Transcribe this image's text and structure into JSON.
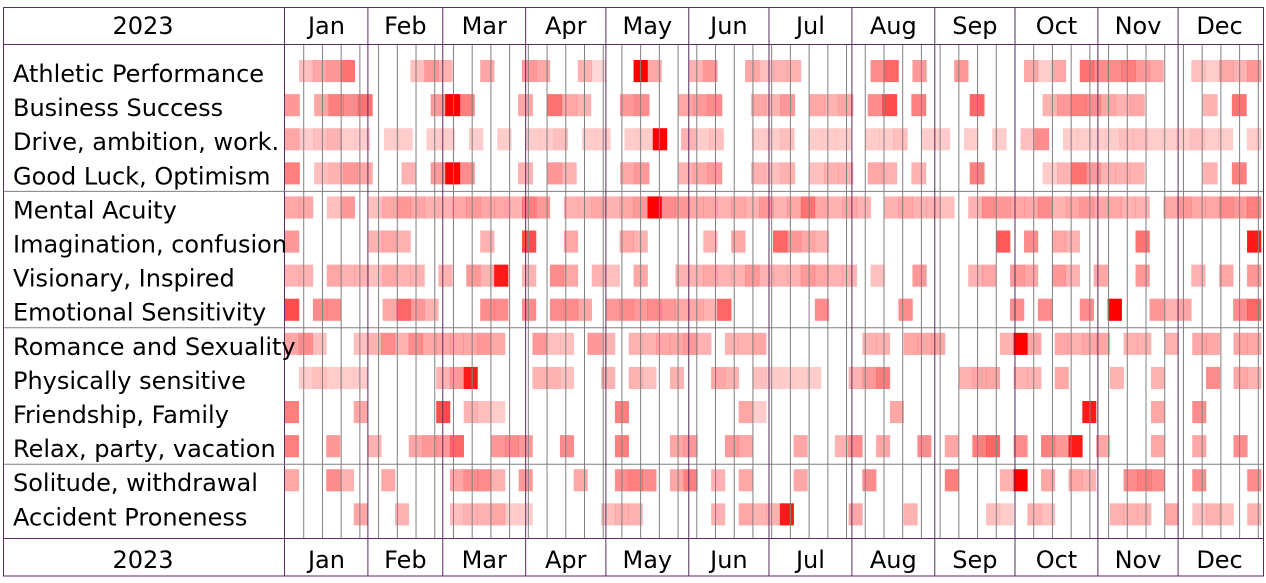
{
  "chart_data": {
    "type": "heatmap",
    "year": "2023",
    "months": [
      "Jan",
      "Feb",
      "Mar",
      "Apr",
      "May",
      "Jun",
      "Jul",
      "Aug",
      "Sep",
      "Oct",
      "Nov",
      "Dec"
    ],
    "resolution": "week",
    "cell_color": "#ff0000",
    "groups": [
      {
        "rows": [
          {
            "label": "Athletic Performance",
            "values": [
              0,
              0.25,
              0.35,
              0.4,
              0.55,
              0,
              0,
              0,
              0,
              0.25,
              0.4,
              0.3,
              0,
              0,
              0.35,
              0,
              0,
              0.4,
              0.35,
              0,
              0,
              0.3,
              0.15,
              0,
              0,
              1,
              0.35,
              0,
              0,
              0.3,
              0.4,
              0,
              0,
              0.35,
              0.25,
              0.3,
              0.3,
              0,
              0,
              0,
              0,
              0,
              0.45,
              0.6,
              0,
              0.4,
              0,
              0,
              0.4,
              0,
              0,
              0,
              0,
              0.35,
              0.2,
              0.35,
              0,
              0.55,
              0.45,
              0.45,
              0.5,
              0.4,
              0.35,
              0,
              0,
              0.25,
              0.2,
              0.35,
              0.3,
              0.4
            ]
          },
          {
            "label": "Business Success",
            "values": [
              0.4,
              0,
              0.35,
              0.5,
              0.45,
              0.55,
              0,
              0,
              0,
              0,
              0.4,
              1,
              0.5,
              0,
              0,
              0,
              0.35,
              0,
              0.55,
              0.35,
              0.3,
              0,
              0,
              0.4,
              0.45,
              0,
              0,
              0.35,
              0.4,
              0.45,
              0,
              0,
              0.35,
              0.3,
              0.4,
              0,
              0.35,
              0.3,
              0.35,
              0,
              0.45,
              0.7,
              0,
              0.5,
              0,
              0,
              0,
              0.6,
              0,
              0,
              0,
              0,
              0.3,
              0.4,
              0.5,
              0.45,
              0.35,
              0.3,
              0.35,
              0,
              0,
              0,
              0,
              0.3,
              0,
              0.55,
              0
            ]
          },
          {
            "label": "Drive, ambition, work.",
            "values": [
              0.35,
              0.2,
              0.25,
              0.3,
              0.2,
              0.2,
              0,
              0.2,
              0.2,
              0,
              0.2,
              0.2,
              0,
              0.2,
              0,
              0.2,
              0,
              0.2,
              0.2,
              0.25,
              0,
              0.2,
              0.2,
              0,
              0.2,
              0.2,
              1,
              0,
              0.3,
              0.2,
              0.25,
              0,
              0,
              0.2,
              0.2,
              0.25,
              0,
              0.2,
              0.2,
              0.2,
              0,
              0.2,
              0.2,
              0.25,
              0,
              0.2,
              0.2,
              0,
              0.2,
              0,
              0.2,
              0,
              0.25,
              0.45,
              0,
              0.2,
              0.2,
              0.2,
              0.2,
              0.25,
              0.25,
              0.2,
              0.2,
              0.2,
              0.25,
              0.2,
              0.2,
              0,
              0.2
            ]
          },
          {
            "label": "Good Luck, Optimism",
            "values": [
              0.5,
              0,
              0.25,
              0.3,
              0.4,
              0.35,
              0,
              0,
              0.3,
              0,
              0.4,
              1,
              0.45,
              0,
              0,
              0,
              0.3,
              0,
              0.4,
              0.3,
              0,
              0,
              0,
              0.35,
              0.4,
              0,
              0,
              0.3,
              0.35,
              0.4,
              0,
              0,
              0.3,
              0.25,
              0.3,
              0,
              0.25,
              0.3,
              0.3,
              0,
              0.35,
              0.3,
              0,
              0.3,
              0,
              0,
              0,
              0.5,
              0,
              0,
              0,
              0,
              0.2,
              0.3,
              0.55,
              0.4,
              0.3,
              0.3,
              0.3,
              0,
              0,
              0,
              0,
              0.3,
              0,
              0.5,
              0
            ]
          }
        ]
      },
      {
        "rows": [
          {
            "label": "Mental Acuity",
            "values": [
              0.35,
              0.35,
              0,
              0.25,
              0.4,
              0,
              0.25,
              0.35,
              0.4,
              0.35,
              0.3,
              0.3,
              0.35,
              0.4,
              0.35,
              0.35,
              0.3,
              0.5,
              0.4,
              0,
              0.3,
              0.3,
              0.35,
              0.3,
              0.35,
              0.4,
              1,
              0.45,
              0.4,
              0.35,
              0.35,
              0.3,
              0.35,
              0.3,
              0.4,
              0.3,
              0.35,
              0.55,
              0.35,
              0.3,
              0.35,
              0.3,
              0,
              0.3,
              0.35,
              0.3,
              0.3,
              0.25,
              0,
              0.3,
              0.45,
              0.4,
              0.35,
              0.35,
              0.45,
              0.3,
              0.35,
              0.4,
              0.35,
              0.35,
              0.3,
              0.3,
              0,
              0.35,
              0.4,
              0.35,
              0.35,
              0.45,
              0.4,
              0.5
            ]
          },
          {
            "label": "Imagination, confusion",
            "values": [
              0.4,
              0,
              0,
              0,
              0,
              0,
              0.3,
              0.35,
              0.3,
              0,
              0,
              0,
              0,
              0,
              0.3,
              0,
              0,
              0.7,
              0,
              0,
              0.35,
              0,
              0,
              0,
              0.35,
              0.3,
              0,
              0,
              0,
              0,
              0.3,
              0,
              0.35,
              0,
              0,
              0.6,
              0.4,
              0.35,
              0.3,
              0,
              0,
              0,
              0,
              0,
              0,
              0,
              0,
              0,
              0,
              0,
              0,
              0.65,
              0,
              0.45,
              0,
              0.35,
              0.3,
              0,
              0,
              0,
              0,
              0.55,
              0,
              0,
              0,
              0,
              0,
              0,
              0,
              0.9
            ]
          },
          {
            "label": "Visionary, Inspired",
            "values": [
              0.3,
              0.3,
              0,
              0.35,
              0.3,
              0.3,
              0.25,
              0.35,
              0.3,
              0.3,
              0,
              0.3,
              0,
              0.4,
              0.3,
              0.9,
              0,
              0.3,
              0,
              0.45,
              0.35,
              0,
              0.3,
              0.25,
              0,
              0.35,
              0,
              0,
              0.3,
              0.3,
              0.35,
              0.3,
              0.3,
              0.4,
              0.3,
              0.3,
              0.3,
              0.4,
              0.35,
              0.3,
              0.3,
              0,
              0.25,
              0,
              0,
              0.4,
              0,
              0,
              0,
              0.3,
              0.35,
              0,
              0.4,
              0.35,
              0,
              0.4,
              0.3,
              0,
              0.35,
              0,
              0,
              0.4,
              0,
              0,
              0,
              0.3,
              0,
              0.35,
              0,
              0.4
            ]
          },
          {
            "label": "Emotional Sensitivity",
            "values": [
              0.7,
              0,
              0.45,
              0.45,
              0,
              0,
              0,
              0.35,
              0.6,
              0.4,
              0.3,
              0,
              0,
              0,
              0.45,
              0.45,
              0,
              0.45,
              0,
              0.45,
              0.45,
              0.35,
              0,
              0.4,
              0.45,
              0.4,
              0.45,
              0.4,
              0.35,
              0.35,
              0.3,
              0.6,
              0,
              0,
              0,
              0,
              0,
              0,
              0.45,
              0,
              0,
              0,
              0,
              0,
              0.45,
              0,
              0,
              0,
              0,
              0,
              0,
              0,
              0.45,
              0,
              0.45,
              0,
              0,
              0.45,
              0,
              1,
              0,
              0,
              0.4,
              0.3,
              0.35,
              0,
              0,
              0,
              0.45,
              0.6
            ]
          }
        ]
      },
      {
        "rows": [
          {
            "label": "Romance and Sexuality",
            "values": [
              0.35,
              0.45,
              0.25,
              0,
              0,
              0.25,
              0.3,
              0.45,
              0.3,
              0.45,
              0.35,
              0.35,
              0.35,
              0.35,
              0.4,
              0.35,
              0,
              0,
              0.4,
              0.25,
              0.25,
              0,
              0.4,
              0.3,
              0,
              0.3,
              0.3,
              0.35,
              0.35,
              0.4,
              0.3,
              0,
              0.3,
              0.3,
              0.35,
              0,
              0,
              0,
              0,
              0,
              0,
              0,
              0.3,
              0.3,
              0,
              0.35,
              0.35,
              0.35,
              0,
              0,
              0,
              0,
              0.3,
              1,
              0.35,
              0,
              0.35,
              0.3,
              0.35,
              0.35,
              0,
              0.3,
              0.3,
              0,
              0.3,
              0,
              0.35,
              0.35,
              0,
              0.35,
              0.35
            ]
          },
          {
            "label": "Physically sensitive",
            "values": [
              0,
              0.2,
              0.25,
              0.2,
              0.2,
              0.2,
              0,
              0,
              0,
              0,
              0,
              0.3,
              0.4,
              0.9,
              0,
              0,
              0,
              0,
              0.3,
              0.3,
              0.25,
              0,
              0,
              0.3,
              0,
              0.3,
              0.25,
              0,
              0.3,
              0,
              0,
              0.35,
              0.3,
              0,
              0.25,
              0.2,
              0.2,
              0.2,
              0.2,
              0,
              0,
              0.3,
              0.4,
              0.5,
              0,
              0,
              0,
              0,
              0,
              0.3,
              0.35,
              0.35,
              0,
              0.3,
              0.3,
              0,
              0.35,
              0,
              0,
              0,
              0.3,
              0,
              0,
              0.3,
              0,
              0,
              0,
              0.45,
              0,
              0.35,
              0.3
            ]
          },
          {
            "label": "Friendship, Family",
            "values": [
              0.5,
              0,
              0,
              0,
              0,
              0.35,
              0,
              0,
              0,
              0,
              0,
              0.7,
              0,
              0.3,
              0.25,
              0.2,
              0,
              0,
              0,
              0,
              0,
              0,
              0,
              0,
              0.5,
              0,
              0,
              0,
              0,
              0,
              0,
              0,
              0,
              0.35,
              0.2,
              0,
              0,
              0,
              0,
              0,
              0,
              0,
              0,
              0,
              0.35,
              0,
              0,
              0,
              0,
              0,
              0,
              0,
              0,
              0,
              0,
              0,
              0,
              0,
              0.9,
              0,
              0,
              0,
              0,
              0.35,
              0,
              0,
              0.45,
              0,
              0,
              0,
              0
            ]
          },
          {
            "label": "Relax, party, vacation",
            "values": [
              0.5,
              0,
              0,
              0.4,
              0,
              0,
              0.3,
              0,
              0,
              0.35,
              0.4,
              0.4,
              0.6,
              0,
              0,
              0.4,
              0.45,
              0.4,
              0,
              0,
              0.45,
              0,
              0,
              0,
              0.5,
              0,
              0,
              0,
              0.35,
              0.4,
              0,
              0,
              0.4,
              0.35,
              0,
              0,
              0,
              0.35,
              0,
              0,
              0.3,
              0.45,
              0,
              0.35,
              0,
              0,
              0.45,
              0,
              0.35,
              0,
              0.5,
              0.6,
              0,
              0.45,
              0,
              0.5,
              0.4,
              0.9,
              0,
              0.35,
              0,
              0,
              0,
              0.35,
              0,
              0,
              0.35,
              0,
              0,
              0.45,
              0
            ]
          }
        ]
      },
      {
        "rows": [
          {
            "label": "Solitude, withdrawal",
            "values": [
              0.35,
              0,
              0,
              0.45,
              0.3,
              0,
              0,
              0.35,
              0,
              0,
              0,
              0,
              0.35,
              0.45,
              0.45,
              0.3,
              0,
              0.4,
              0,
              0,
              0,
              0.35,
              0,
              0,
              0.45,
              0.5,
              0.45,
              0,
              0.35,
              0.5,
              0,
              0.3,
              0,
              0.35,
              0,
              0,
              0,
              0.35,
              0,
              0,
              0,
              0,
              0.45,
              0,
              0,
              0,
              0,
              0,
              0.5,
              0,
              0,
              0,
              0.3,
              1,
              0,
              0.35,
              0,
              0.35,
              0.3,
              0,
              0,
              0.45,
              0.5,
              0.45,
              0,
              0,
              0.45,
              0,
              0,
              0,
              0.45
            ]
          },
          {
            "label": "Accident Proneness",
            "values": [
              0,
              0,
              0,
              0,
              0,
              0.35,
              0,
              0,
              0.3,
              0,
              0,
              0,
              0.25,
              0.3,
              0.3,
              0.35,
              0.2,
              0.2,
              0,
              0,
              0,
              0,
              0,
              0.25,
              0.3,
              0.3,
              0,
              0,
              0,
              0,
              0,
              0.3,
              0,
              0.35,
              0.3,
              0.3,
              0.9,
              0,
              0,
              0,
              0,
              0.35,
              0,
              0,
              0,
              0.3,
              0,
              0,
              0,
              0,
              0,
              0.25,
              0.2,
              0,
              0.3,
              0.25,
              0,
              0,
              0,
              0,
              0.3,
              0.3,
              0.3,
              0,
              0.35,
              0,
              0.25,
              0.3,
              0.25,
              0,
              0.3
            ]
          }
        ]
      }
    ]
  }
}
